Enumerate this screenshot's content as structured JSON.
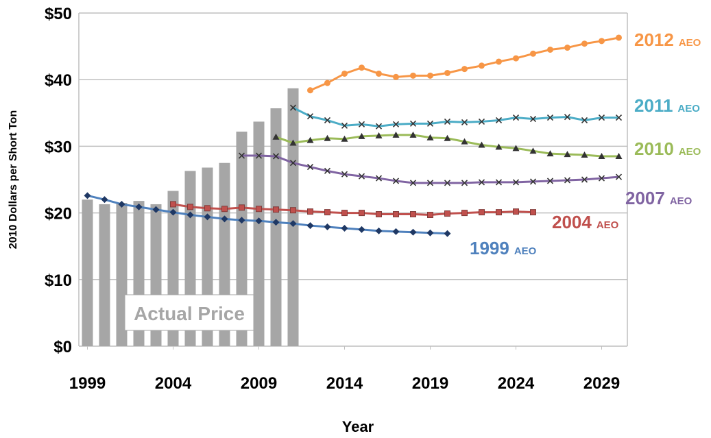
{
  "chart_data": {
    "type": "line",
    "y_label": "2010 Dollars per Short Ton",
    "x_label": "Year",
    "ylim": [
      0,
      50
    ],
    "yticks": [
      {
        "value": 0,
        "label": "$0"
      },
      {
        "value": 10,
        "label": "$10"
      },
      {
        "value": 20,
        "label": "$20"
      },
      {
        "value": 30,
        "label": "$30"
      },
      {
        "value": 40,
        "label": "$40"
      },
      {
        "value": 50,
        "label": "$50"
      }
    ],
    "xlim": [
      1998.5,
      2030.5
    ],
    "xticks": [
      1999,
      2004,
      2009,
      2014,
      2019,
      2024,
      2029
    ],
    "grid": true,
    "bars": {
      "name": "Actual Price",
      "color": "#a6a6a6",
      "x": [
        1999,
        2000,
        2001,
        2002,
        2003,
        2004,
        2005,
        2006,
        2007,
        2008,
        2009,
        2010,
        2011
      ],
      "values": [
        22,
        21.3,
        21.5,
        21.8,
        21.3,
        23.3,
        26.3,
        26.8,
        27.5,
        32.2,
        33.7,
        35.7,
        38.7
      ]
    },
    "series": [
      {
        "name": "1999",
        "name_suffix": "AEO",
        "color": "#4f81bd",
        "marker": "diamond",
        "x": [
          1999,
          2000,
          2001,
          2002,
          2003,
          2004,
          2005,
          2006,
          2007,
          2008,
          2009,
          2010,
          2011,
          2012,
          2013,
          2014,
          2015,
          2016,
          2017,
          2018,
          2019,
          2020
        ],
        "values": [
          22.6,
          22.0,
          21.3,
          20.9,
          20.5,
          20.1,
          19.7,
          19.4,
          19.1,
          18.9,
          18.8,
          18.6,
          18.4,
          18.1,
          17.9,
          17.7,
          17.5,
          17.3,
          17.2,
          17.1,
          17.0,
          16.9
        ]
      },
      {
        "name": "2004",
        "name_suffix": "AEO",
        "color": "#c0504d",
        "marker": "square",
        "x": [
          2004,
          2005,
          2006,
          2007,
          2008,
          2009,
          2010,
          2011,
          2012,
          2013,
          2014,
          2015,
          2016,
          2017,
          2018,
          2019,
          2020,
          2021,
          2022,
          2023,
          2024,
          2025
        ],
        "values": [
          21.3,
          20.9,
          20.7,
          20.6,
          20.8,
          20.6,
          20.5,
          20.4,
          20.2,
          20.1,
          20.0,
          20.0,
          19.8,
          19.8,
          19.8,
          19.7,
          19.9,
          20.0,
          20.1,
          20.1,
          20.2,
          20.1
        ]
      },
      {
        "name": "2007",
        "name_suffix": "AEO",
        "color": "#8064a2",
        "marker": "x",
        "x": [
          2008,
          2009,
          2010,
          2011,
          2012,
          2013,
          2014,
          2015,
          2016,
          2017,
          2018,
          2019,
          2020,
          2021,
          2022,
          2023,
          2024,
          2025,
          2026,
          2027,
          2028,
          2029,
          2030
        ],
        "values": [
          28.6,
          28.6,
          28.5,
          27.5,
          26.9,
          26.3,
          25.8,
          25.5,
          25.2,
          24.8,
          24.5,
          24.5,
          24.5,
          24.5,
          24.6,
          24.6,
          24.6,
          24.7,
          24.8,
          24.9,
          25.0,
          25.2,
          25.4
        ]
      },
      {
        "name": "2010",
        "name_suffix": "AEO",
        "color": "#9bbb59",
        "marker": "triangle",
        "x": [
          2010,
          2011,
          2012,
          2013,
          2014,
          2015,
          2016,
          2017,
          2018,
          2019,
          2020,
          2021,
          2022,
          2023,
          2024,
          2025,
          2026,
          2027,
          2028,
          2029,
          2030
        ],
        "values": [
          31.4,
          30.5,
          30.9,
          31.2,
          31.1,
          31.5,
          31.6,
          31.7,
          31.7,
          31.3,
          31.2,
          30.7,
          30.2,
          29.9,
          29.7,
          29.3,
          28.9,
          28.8,
          28.7,
          28.5,
          28.5
        ]
      },
      {
        "name": "2011",
        "name_suffix": "AEO",
        "color": "#4bacc6",
        "marker": "x",
        "x": [
          2011,
          2012,
          2013,
          2014,
          2015,
          2016,
          2017,
          2018,
          2019,
          2020,
          2021,
          2022,
          2023,
          2024,
          2025,
          2026,
          2027,
          2028,
          2029,
          2030
        ],
        "values": [
          35.8,
          34.5,
          33.9,
          33.1,
          33.3,
          33.0,
          33.3,
          33.4,
          33.4,
          33.7,
          33.6,
          33.7,
          33.9,
          34.3,
          34.1,
          34.3,
          34.4,
          33.9,
          34.3,
          34.3
        ]
      },
      {
        "name": "2012",
        "name_suffix": "AEO",
        "color": "#f79646",
        "marker": "circle",
        "x": [
          2012,
          2013,
          2014,
          2015,
          2016,
          2017,
          2018,
          2019,
          2020,
          2021,
          2022,
          2023,
          2024,
          2025,
          2026,
          2027,
          2028,
          2029,
          2030
        ],
        "values": [
          38.4,
          39.5,
          40.9,
          41.8,
          40.9,
          40.4,
          40.6,
          40.6,
          41.0,
          41.6,
          42.1,
          42.7,
          43.2,
          43.9,
          44.5,
          44.8,
          45.4,
          45.8,
          46.3
        ]
      }
    ]
  }
}
